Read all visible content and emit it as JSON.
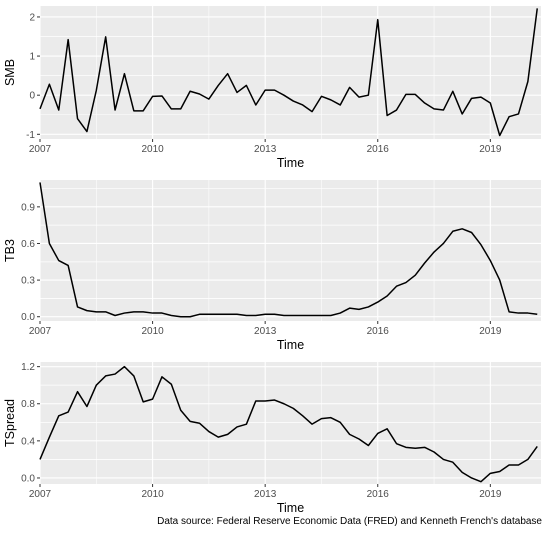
{
  "chart_data": [
    {
      "type": "line",
      "xlabel": "Time",
      "ylabel": "SMB",
      "xlim": [
        2007.0,
        2020.35
      ],
      "ylim": [
        -1.12,
        2.28
      ],
      "xticks": [
        2007,
        2010,
        2013,
        2016,
        2019
      ],
      "yticks": [
        -1,
        0,
        1,
        2
      ],
      "ytick_labels": [
        "-1",
        "0",
        "1",
        "2"
      ],
      "grid": true,
      "background": "#ebebeb",
      "line_color": "#000000",
      "series": [
        {
          "x": [
            2007.0,
            2007.25,
            2007.5,
            2007.75,
            2008.0,
            2008.25,
            2008.5,
            2008.75,
            2009.0,
            2009.25,
            2009.5,
            2009.75,
            2010.0,
            2010.25,
            2010.5,
            2010.75,
            2011.0,
            2011.25,
            2011.5,
            2011.75,
            2012.0,
            2012.25,
            2012.5,
            2012.75,
            2013.0,
            2013.25,
            2013.5,
            2013.75,
            2014.0,
            2014.25,
            2014.5,
            2014.75,
            2015.0,
            2015.25,
            2015.5,
            2015.75,
            2016.0,
            2016.25,
            2016.5,
            2016.75,
            2017.0,
            2017.25,
            2017.5,
            2017.75,
            2018.0,
            2018.25,
            2018.5,
            2018.75,
            2019.0,
            2019.25,
            2019.5,
            2019.75,
            2020.0,
            2020.25
          ],
          "y": [
            -0.35,
            0.28,
            -0.38,
            1.42,
            -0.6,
            -0.93,
            0.12,
            1.49,
            -0.38,
            0.55,
            -0.4,
            -0.4,
            -0.03,
            -0.02,
            -0.35,
            -0.35,
            0.1,
            0.03,
            -0.1,
            0.25,
            0.55,
            0.07,
            0.25,
            -0.25,
            0.13,
            0.13,
            0.0,
            -0.15,
            -0.25,
            -0.42,
            -0.03,
            -0.12,
            -0.25,
            0.2,
            -0.05,
            0.0,
            1.93,
            -0.52,
            -0.38,
            0.02,
            0.02,
            -0.2,
            -0.35,
            -0.38,
            0.1,
            -0.48,
            -0.08,
            -0.05,
            -0.2,
            -1.03,
            -0.55,
            -0.48,
            0.35,
            2.22
          ]
        }
      ]
    },
    {
      "type": "line",
      "xlabel": "Time",
      "ylabel": "TB3",
      "xlim": [
        2007.0,
        2020.35
      ],
      "ylim": [
        -0.035,
        1.12
      ],
      "xticks": [
        2007,
        2010,
        2013,
        2016,
        2019
      ],
      "yticks": [
        0.0,
        0.3,
        0.6,
        0.9
      ],
      "ytick_labels": [
        "0.0",
        "0.3",
        "0.6",
        "0.9"
      ],
      "grid": true,
      "background": "#ebebeb",
      "line_color": "#000000",
      "series": [
        {
          "x": [
            2007.0,
            2007.25,
            2007.5,
            2007.75,
            2008.0,
            2008.25,
            2008.5,
            2008.75,
            2009.0,
            2009.25,
            2009.5,
            2009.75,
            2010.0,
            2010.25,
            2010.5,
            2010.75,
            2011.0,
            2011.25,
            2011.5,
            2011.75,
            2012.0,
            2012.25,
            2012.5,
            2012.75,
            2013.0,
            2013.25,
            2013.5,
            2013.75,
            2014.0,
            2014.25,
            2014.5,
            2014.75,
            2015.0,
            2015.25,
            2015.5,
            2015.75,
            2016.0,
            2016.25,
            2016.5,
            2016.75,
            2017.0,
            2017.25,
            2017.5,
            2017.75,
            2018.0,
            2018.25,
            2018.5,
            2018.75,
            2019.0,
            2019.25,
            2019.5,
            2019.75,
            2020.0,
            2020.25
          ],
          "y": [
            1.1,
            0.6,
            0.46,
            0.42,
            0.08,
            0.05,
            0.04,
            0.04,
            0.01,
            0.03,
            0.04,
            0.04,
            0.03,
            0.03,
            0.01,
            0.0,
            0.0,
            0.02,
            0.02,
            0.02,
            0.02,
            0.02,
            0.01,
            0.01,
            0.02,
            0.02,
            0.01,
            0.01,
            0.01,
            0.01,
            0.01,
            0.01,
            0.03,
            0.07,
            0.06,
            0.08,
            0.12,
            0.17,
            0.25,
            0.28,
            0.34,
            0.44,
            0.53,
            0.6,
            0.7,
            0.72,
            0.69,
            0.59,
            0.46,
            0.3,
            0.04,
            0.03,
            0.03,
            0.02
          ]
        }
      ]
    },
    {
      "type": "line",
      "xlabel": "Time",
      "ylabel": "TSpread",
      "xlim": [
        2007.0,
        2020.35
      ],
      "ylim": [
        -0.065,
        1.25
      ],
      "xticks": [
        2007,
        2010,
        2013,
        2016,
        2019
      ],
      "yticks": [
        0.0,
        0.4,
        0.8,
        1.2
      ],
      "ytick_labels": [
        "0.0",
        "0.4",
        "0.8",
        "1.2"
      ],
      "grid": true,
      "background": "#ebebeb",
      "line_color": "#000000",
      "series": [
        {
          "x": [
            2007.0,
            2007.25,
            2007.5,
            2007.75,
            2008.0,
            2008.25,
            2008.5,
            2008.75,
            2009.0,
            2009.25,
            2009.5,
            2009.75,
            2010.0,
            2010.25,
            2010.5,
            2010.75,
            2011.0,
            2011.25,
            2011.5,
            2011.75,
            2012.0,
            2012.25,
            2012.5,
            2012.75,
            2013.0,
            2013.25,
            2013.5,
            2013.75,
            2014.0,
            2014.25,
            2014.5,
            2014.75,
            2015.0,
            2015.25,
            2015.5,
            2015.75,
            2016.0,
            2016.25,
            2016.5,
            2016.75,
            2017.0,
            2017.25,
            2017.5,
            2017.75,
            2018.0,
            2018.25,
            2018.5,
            2018.75,
            2019.0,
            2019.25,
            2019.5,
            2019.75,
            2020.0,
            2020.25
          ],
          "y": [
            0.2,
            0.44,
            0.67,
            0.71,
            0.93,
            0.77,
            1.0,
            1.1,
            1.12,
            1.2,
            1.1,
            0.82,
            0.85,
            1.09,
            1.01,
            0.73,
            0.61,
            0.59,
            0.5,
            0.44,
            0.47,
            0.55,
            0.58,
            0.83,
            0.83,
            0.84,
            0.8,
            0.75,
            0.67,
            0.58,
            0.64,
            0.65,
            0.6,
            0.47,
            0.42,
            0.35,
            0.48,
            0.53,
            0.37,
            0.33,
            0.32,
            0.33,
            0.28,
            0.2,
            0.17,
            0.06,
            0.0,
            -0.04,
            0.05,
            0.07,
            0.14,
            0.14,
            0.2,
            0.34
          ]
        }
      ]
    }
  ],
  "caption": "Data source: Federal Reserve Economic Data (FRED) and Kenneth French's database"
}
